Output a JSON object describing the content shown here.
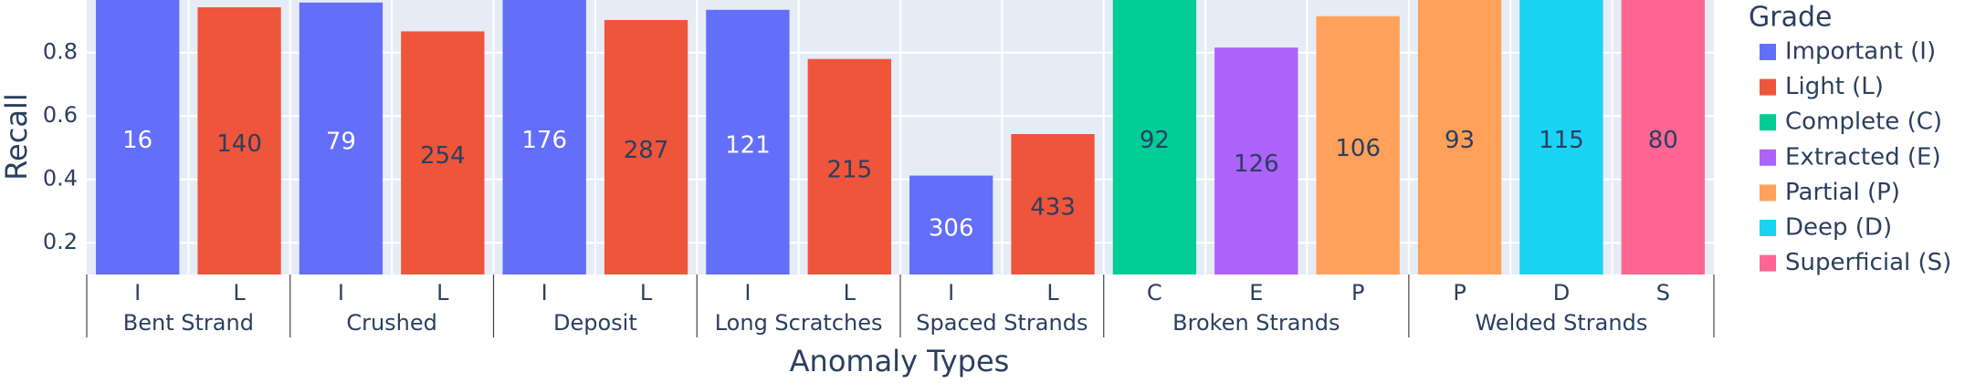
{
  "chart_data": {
    "type": "bar",
    "x_title": "Anomaly Types",
    "y_title": "Recall",
    "legend_title": "Grade",
    "legend_position": "right",
    "grid": true,
    "ylim": [
      0.1,
      0.966
    ],
    "yticks": [
      0.2,
      0.4,
      0.6,
      0.8
    ],
    "categories": [
      [
        "Bent Strand",
        "I"
      ],
      [
        "Bent Strand",
        "L"
      ],
      [
        "Crushed",
        "I"
      ],
      [
        "Crushed",
        "L"
      ],
      [
        "Deposit",
        "I"
      ],
      [
        "Deposit",
        "L"
      ],
      [
        "Long Scratches",
        "I"
      ],
      [
        "Long Scratches",
        "L"
      ],
      [
        "Spaced Strands",
        "I"
      ],
      [
        "Spaced Strands",
        "L"
      ],
      [
        "Broken Strands",
        "C"
      ],
      [
        "Broken Strands",
        "E"
      ],
      [
        "Broken Strands",
        "P"
      ],
      [
        "Welded Strands",
        "P"
      ],
      [
        "Welded Strands",
        "D"
      ],
      [
        "Welded Strands",
        "S"
      ]
    ],
    "series": [
      {
        "name": "Important (I)",
        "color": "#636efa",
        "values": [
          1.0,
          null,
          0.958,
          null,
          1.0,
          null,
          0.935,
          null,
          0.412,
          null,
          null,
          null,
          null,
          null,
          null,
          null
        ],
        "texts": [
          "16",
          null,
          "79",
          null,
          "176",
          null,
          "121",
          null,
          "306",
          null,
          null,
          null,
          null,
          null,
          null,
          null
        ]
      },
      {
        "name": "Light (L)",
        "color": "#ef553b",
        "values": [
          null,
          0.943,
          null,
          0.867,
          null,
          0.903,
          null,
          0.78,
          null,
          0.543,
          null,
          null,
          null,
          null,
          null,
          null
        ],
        "texts": [
          null,
          "140",
          null,
          "254",
          null,
          "287",
          null,
          "215",
          null,
          "433",
          null,
          null,
          null,
          null,
          null,
          null
        ]
      },
      {
        "name": "Complete (C)",
        "color": "#00cc96",
        "values": [
          null,
          null,
          null,
          null,
          null,
          null,
          null,
          null,
          null,
          null,
          1.0,
          null,
          null,
          null,
          null,
          null
        ],
        "texts": [
          null,
          null,
          null,
          null,
          null,
          null,
          null,
          null,
          null,
          null,
          "92",
          null,
          null,
          null,
          null,
          null
        ]
      },
      {
        "name": "Extracted (E)",
        "color": "#ab63fa",
        "values": [
          null,
          null,
          null,
          null,
          null,
          null,
          null,
          null,
          null,
          null,
          null,
          0.816,
          null,
          null,
          null,
          null
        ],
        "texts": [
          null,
          null,
          null,
          null,
          null,
          null,
          null,
          null,
          null,
          null,
          null,
          "126",
          null,
          null,
          null,
          null
        ]
      },
      {
        "name": "Partial (P)",
        "color": "#ffa15a",
        "values": [
          null,
          null,
          null,
          null,
          null,
          null,
          null,
          null,
          null,
          null,
          null,
          null,
          0.915,
          1.0,
          null,
          null
        ],
        "texts": [
          null,
          null,
          null,
          null,
          null,
          null,
          null,
          null,
          null,
          null,
          null,
          null,
          "106",
          "93",
          null,
          null
        ]
      },
      {
        "name": "Deep (D)",
        "color": "#19d3f3",
        "values": [
          null,
          null,
          null,
          null,
          null,
          null,
          null,
          null,
          null,
          null,
          null,
          null,
          null,
          null,
          1.0,
          null
        ],
        "texts": [
          null,
          null,
          null,
          null,
          null,
          null,
          null,
          null,
          null,
          null,
          null,
          null,
          null,
          null,
          "115",
          null
        ]
      },
      {
        "name": "Superficial (S)",
        "color": "#ff6692",
        "values": [
          null,
          null,
          null,
          null,
          null,
          null,
          null,
          null,
          null,
          null,
          null,
          null,
          null,
          null,
          null,
          1.0
        ],
        "texts": [
          null,
          null,
          null,
          null,
          null,
          null,
          null,
          null,
          null,
          null,
          null,
          null,
          null,
          null,
          null,
          "80"
        ]
      }
    ]
  }
}
